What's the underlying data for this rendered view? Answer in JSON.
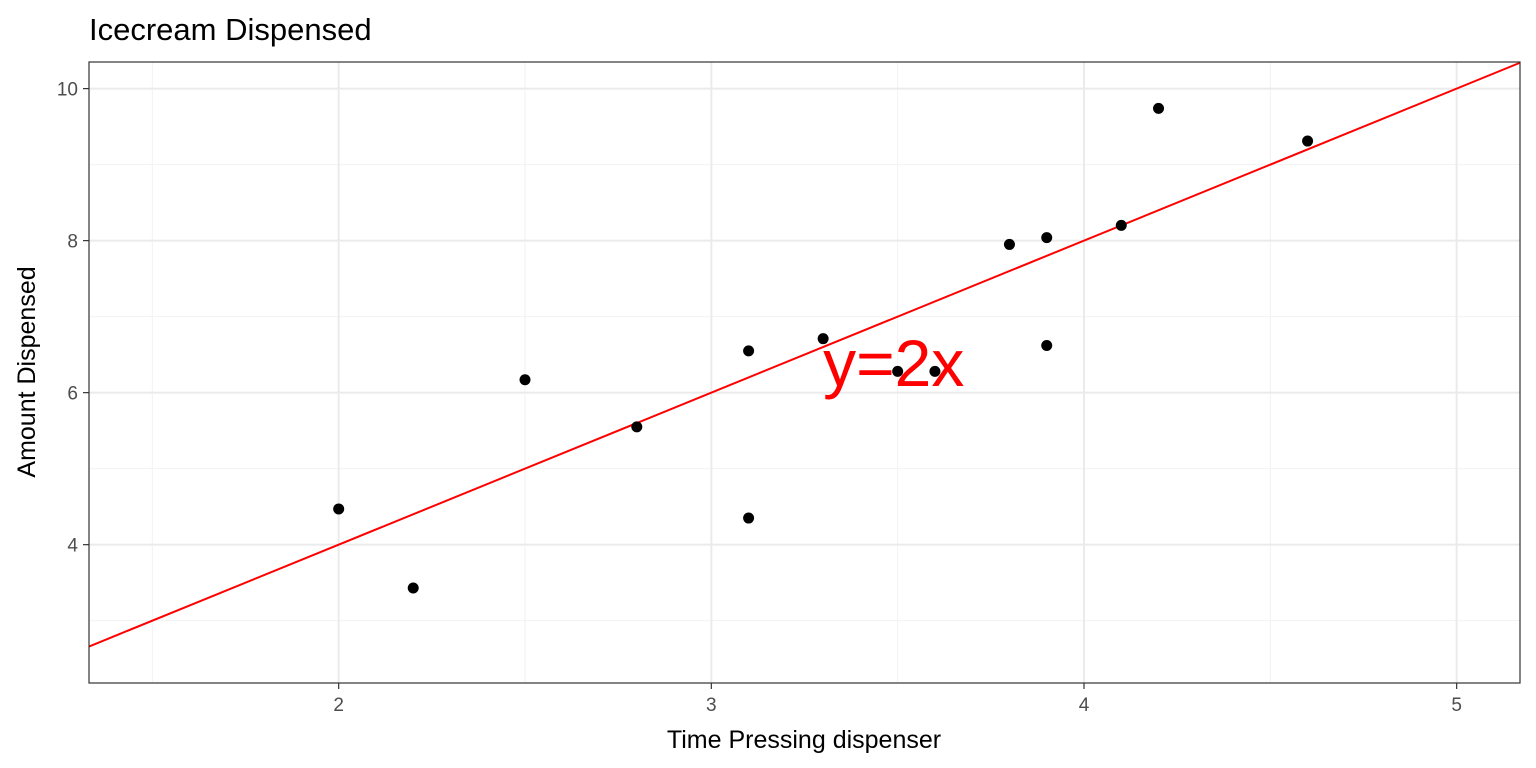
{
  "chart_data": {
    "type": "scatter",
    "title": "Icecream Dispensed",
    "xlabel": "Time Pressing dispenser",
    "ylabel": "Amount Dispensed",
    "xlim": [
      1.33,
      5.17
    ],
    "ylim": [
      2.18,
      10.35
    ],
    "x_ticks": [
      2,
      3,
      4,
      5
    ],
    "y_ticks": [
      4,
      6,
      8,
      10
    ],
    "x_minor": [
      1.5,
      2.5,
      3.5,
      4.5
    ],
    "y_minor": [
      3,
      5,
      7,
      9
    ],
    "grid": true,
    "points": [
      {
        "x": 2.0,
        "y": 4.47
      },
      {
        "x": 2.2,
        "y": 3.43
      },
      {
        "x": 2.5,
        "y": 6.17
      },
      {
        "x": 2.8,
        "y": 5.55
      },
      {
        "x": 3.1,
        "y": 6.55
      },
      {
        "x": 3.1,
        "y": 4.35
      },
      {
        "x": 3.3,
        "y": 6.71
      },
      {
        "x": 3.5,
        "y": 6.28
      },
      {
        "x": 3.6,
        "y": 6.28
      },
      {
        "x": 3.8,
        "y": 7.95
      },
      {
        "x": 3.9,
        "y": 8.04
      },
      {
        "x": 3.9,
        "y": 6.62
      },
      {
        "x": 4.1,
        "y": 8.2
      },
      {
        "x": 4.2,
        "y": 9.74
      },
      {
        "x": 4.6,
        "y": 9.31
      }
    ],
    "reference_line": {
      "slope": 2,
      "intercept": 0,
      "color": "#ff0000"
    },
    "annotation": {
      "text": "y=2x",
      "x": 3.3,
      "y": 6.4,
      "color": "#ff0000"
    },
    "point_color": "#000000",
    "grid_major_color": "#ebebeb",
    "grid_minor_color": "#f2f2f2",
    "panel_border_color": "#333333"
  }
}
